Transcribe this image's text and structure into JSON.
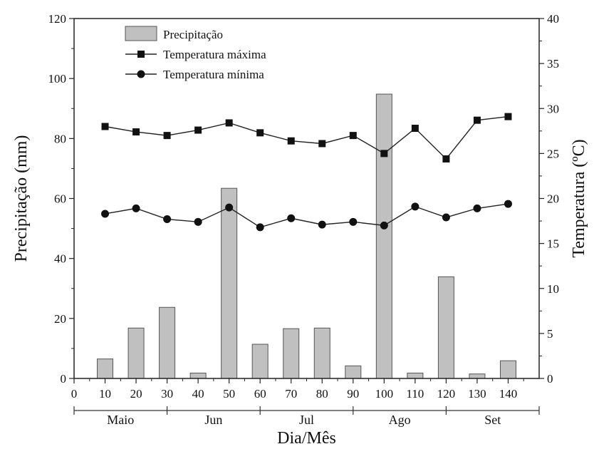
{
  "chart_data": {
    "type": "bar+line",
    "xlabel": "Dia/Mês",
    "ylabel_left": "Precipitação (mm)",
    "ylabel_right": "Temperatura (ºC)",
    "xlim": [
      0,
      150
    ],
    "ylim_left": [
      0,
      120
    ],
    "ylim_right": [
      0,
      40
    ],
    "x_ticks": [
      0,
      10,
      20,
      30,
      40,
      50,
      60,
      70,
      80,
      90,
      100,
      110,
      120,
      130,
      140
    ],
    "y_ticks_left": [
      0,
      20,
      40,
      60,
      80,
      100,
      120
    ],
    "y_ticks_right": [
      0,
      5,
      10,
      15,
      20,
      25,
      30,
      35,
      40
    ],
    "legend_position": "top-left",
    "grid": false,
    "months": [
      {
        "label": "Maio",
        "start": 0,
        "end": 30
      },
      {
        "label": "Jun",
        "start": 30,
        "end": 60
      },
      {
        "label": "Jul",
        "start": 60,
        "end": 90
      },
      {
        "label": "Ago",
        "start": 90,
        "end": 120
      },
      {
        "label": "Set",
        "start": 120,
        "end": 150
      }
    ],
    "bar_series": {
      "name": "Precipitação",
      "color": "#c0c0c0",
      "x": [
        10,
        20,
        30,
        40,
        50,
        60,
        70,
        80,
        90,
        100,
        110,
        120,
        130,
        140
      ],
      "values": [
        6.5,
        16.8,
        23.7,
        1.8,
        63.4,
        11.4,
        16.6,
        16.8,
        4.2,
        94.8,
        1.8,
        33.9,
        1.5,
        5.9
      ]
    },
    "line_series": [
      {
        "name": "Temperatura máxima",
        "marker": "square",
        "x": [
          10,
          20,
          30,
          40,
          50,
          60,
          70,
          80,
          90,
          100,
          110,
          120,
          130,
          140
        ],
        "values": [
          28.0,
          27.4,
          27.0,
          27.6,
          28.4,
          27.3,
          26.4,
          26.1,
          27.0,
          25.0,
          27.8,
          24.4,
          28.7,
          29.1
        ]
      },
      {
        "name": "Temperatura mínima",
        "marker": "circle",
        "x": [
          10,
          20,
          30,
          40,
          50,
          60,
          70,
          80,
          90,
          100,
          110,
          120,
          130,
          140
        ],
        "values": [
          18.3,
          18.9,
          17.7,
          17.4,
          19.0,
          16.8,
          17.8,
          17.1,
          17.4,
          17.0,
          19.1,
          17.9,
          18.9,
          19.4
        ]
      }
    ]
  }
}
